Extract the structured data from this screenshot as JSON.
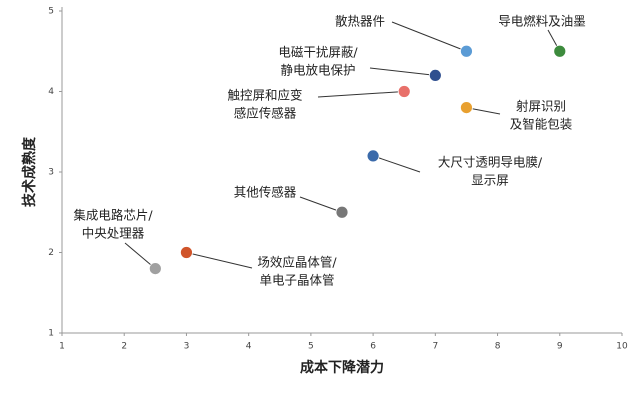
{
  "chart_data": {
    "type": "scatter",
    "x_label": "成本下降潜力",
    "y_label": "技术成熟度",
    "xlim": [
      1,
      10
    ],
    "ylim": [
      1,
      5
    ],
    "xticks": [
      1,
      2,
      3,
      4,
      5,
      6,
      7,
      8,
      9,
      10
    ],
    "yticks": [
      1,
      2,
      3,
      4,
      5
    ],
    "points": [
      {
        "label": [
          "散热器件"
        ],
        "x": 7.5,
        "y": 4.5,
        "color": "#5b9bd5"
      },
      {
        "label": [
          "导电燃料及油墨"
        ],
        "x": 9,
        "y": 4.5,
        "color": "#3d8b3d"
      },
      {
        "label": [
          "电磁干扰屏蔽/",
          "静电放电保护"
        ],
        "x": 7,
        "y": 4.2,
        "color": "#2f4f8f"
      },
      {
        "label": [
          "触控屏和应变",
          "感应传感器"
        ],
        "x": 6.5,
        "y": 4.0,
        "color": "#e8706a"
      },
      {
        "label": [
          "射屏识别",
          "及智能包装"
        ],
        "x": 7.5,
        "y": 3.8,
        "color": "#e8a030"
      },
      {
        "label": [
          "大尺寸透明导电膜/",
          "显示屏"
        ],
        "x": 6,
        "y": 3.2,
        "color": "#3a6aaa"
      },
      {
        "label": [
          "其他传感器"
        ],
        "x": 5.5,
        "y": 2.5,
        "color": "#777777"
      },
      {
        "label": [
          "集成电路芯片/",
          "中央处理器"
        ],
        "x": 2.5,
        "y": 1.8,
        "color": "#a0a0a0"
      },
      {
        "label": [
          "场效应晶体管/",
          "单电子晶体管"
        ],
        "x": 3,
        "y": 2.0,
        "color": "#d0542a"
      }
    ]
  }
}
